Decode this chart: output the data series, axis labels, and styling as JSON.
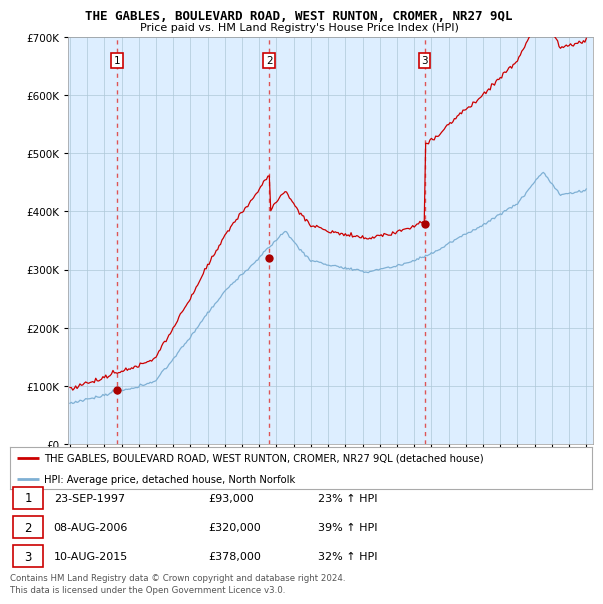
{
  "title": "THE GABLES, BOULEVARD ROAD, WEST RUNTON, CROMER, NR27 9QL",
  "subtitle": "Price paid vs. HM Land Registry's House Price Index (HPI)",
  "legend_line1": "THE GABLES, BOULEVARD ROAD, WEST RUNTON, CROMER, NR27 9QL (detached house)",
  "legend_line2": "HPI: Average price, detached house, North Norfolk",
  "sale_times": [
    1997.727,
    2006.586,
    2015.603
  ],
  "sale_prices": [
    93000,
    320000,
    378000
  ],
  "sale_labels": [
    "1",
    "2",
    "3"
  ],
  "sale_info": [
    [
      "1",
      "23-SEP-1997",
      "£93,000",
      "23% ↑ HPI"
    ],
    [
      "2",
      "08-AUG-2006",
      "£320,000",
      "39% ↑ HPI"
    ],
    [
      "3",
      "10-AUG-2015",
      "£378,000",
      "32% ↑ HPI"
    ]
  ],
  "footer": "Contains HM Land Registry data © Crown copyright and database right 2024.\nThis data is licensed under the Open Government Licence v3.0.",
  "red_line_color": "#cc0000",
  "blue_line_color": "#7fb0d4",
  "chart_bg_color": "#ddeeff",
  "dashed_vline_color": "#dd4444",
  "sale_marker_color": "#aa0000",
  "grid_color": "#aec8d8",
  "background_color": "#ffffff",
  "ylim": [
    0,
    700000
  ],
  "yticks": [
    0,
    100000,
    200000,
    300000,
    400000,
    500000,
    600000,
    700000
  ],
  "xlim_left": 1994.9,
  "xlim_right": 2025.4
}
